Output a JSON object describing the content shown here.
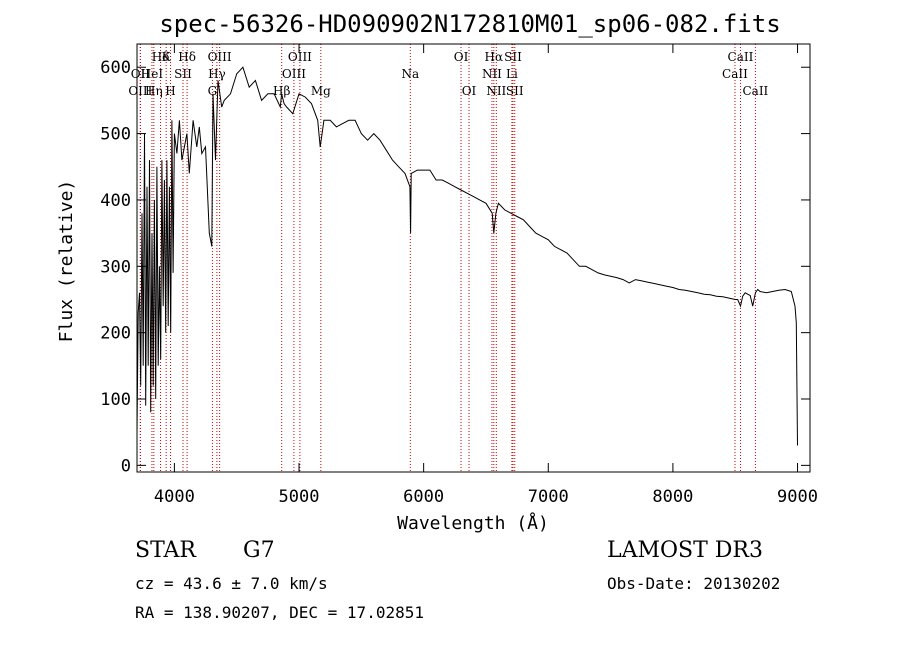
{
  "chart_data": {
    "type": "line",
    "title": "spec-56326-HD090902N172810M01_sp06-082.fits",
    "xlabel": "Wavelength (Å)",
    "ylabel": "Flux (relative)",
    "xlim": [
      3700,
      9100
    ],
    "ylim": [
      -10,
      635
    ],
    "xticks": [
      4000,
      5000,
      6000,
      7000,
      8000,
      9000
    ],
    "yticks": [
      0,
      100,
      200,
      300,
      400,
      500,
      600
    ],
    "grid": false,
    "line_color": "#000000",
    "marker_color": "#cc0000",
    "series": [
      {
        "x": [
          3700,
          3710,
          3720,
          3730,
          3740,
          3750,
          3760,
          3770,
          3780,
          3790,
          3800,
          3810,
          3820,
          3830,
          3840,
          3850,
          3860,
          3870,
          3880,
          3890,
          3900,
          3910,
          3920,
          3930,
          3940,
          3950,
          3960,
          3970,
          3980,
          3990,
          4000,
          4020,
          4040,
          4060,
          4080,
          4100,
          4120,
          4150,
          4180,
          4200,
          4220,
          4250,
          4280,
          4300,
          4310,
          4330,
          4350,
          4380,
          4400,
          4450,
          4500,
          4550,
          4600,
          4650,
          4700,
          4750,
          4800,
          4850,
          4860,
          4880,
          4900,
          4950,
          5000,
          5050,
          5100,
          5150,
          5170,
          5185,
          5200,
          5250,
          5300,
          5350,
          5400,
          5450,
          5500,
          5550,
          5600,
          5650,
          5700,
          5750,
          5800,
          5850,
          5890,
          5895,
          5900,
          5950,
          6000,
          6050,
          6100,
          6150,
          6200,
          6250,
          6300,
          6350,
          6400,
          6450,
          6500,
          6550,
          6563,
          6580,
          6600,
          6650,
          6700,
          6750,
          6800,
          6850,
          6900,
          6950,
          7000,
          7050,
          7100,
          7150,
          7200,
          7250,
          7300,
          7350,
          7400,
          7450,
          7500,
          7550,
          7600,
          7650,
          7700,
          7750,
          7800,
          7850,
          7900,
          7950,
          8000,
          8050,
          8100,
          8150,
          8200,
          8250,
          8300,
          8350,
          8400,
          8450,
          8500,
          8520,
          8542,
          8560,
          8580,
          8600,
          8620,
          8640,
          8662,
          8680,
          8700,
          8750,
          8800,
          8850,
          8900,
          8950,
          8980,
          8990,
          9000
        ],
        "y": [
          50,
          230,
          260,
          120,
          380,
          150,
          500,
          90,
          420,
          150,
          460,
          80,
          350,
          120,
          400,
          100,
          450,
          150,
          300,
          160,
          460,
          240,
          430,
          200,
          460,
          210,
          420,
          200,
          520,
          290,
          500,
          470,
          520,
          460,
          480,
          500,
          440,
          520,
          480,
          510,
          470,
          480,
          350,
          330,
          560,
          460,
          580,
          540,
          550,
          560,
          590,
          600,
          570,
          580,
          550,
          560,
          560,
          540,
          560,
          545,
          540,
          530,
          560,
          555,
          545,
          520,
          480,
          500,
          520,
          520,
          510,
          515,
          520,
          520,
          500,
          490,
          500,
          490,
          475,
          460,
          450,
          440,
          420,
          350,
          440,
          445,
          445,
          445,
          430,
          430,
          425,
          420,
          415,
          410,
          405,
          400,
          395,
          380,
          350,
          380,
          395,
          385,
          380,
          375,
          370,
          360,
          350,
          345,
          340,
          330,
          325,
          320,
          310,
          300,
          300,
          295,
          290,
          287,
          285,
          283,
          280,
          275,
          280,
          278,
          276,
          274,
          272,
          270,
          268,
          265,
          264,
          262,
          260,
          258,
          257,
          255,
          254,
          252,
          250,
          250,
          240,
          255,
          260,
          258,
          256,
          240,
          260,
          265,
          262,
          260,
          262,
          264,
          265,
          262,
          240,
          215,
          30
        ]
      }
    ],
    "lines": [
      {
        "name": "Hδ",
        "x": 3889,
        "tier": 0
      },
      {
        "name": "OII",
        "x": 3727,
        "tier": 1
      },
      {
        "name": "OIII",
        "x": 3727,
        "tier": 2
      },
      {
        "name": "HeI",
        "x": 3820,
        "tier": 1
      },
      {
        "name": "Hη",
        "x": 3835,
        "tier": 2
      },
      {
        "name": "K",
        "x": 3934,
        "tier": 0
      },
      {
        "name": "SII",
        "x": 4069,
        "tier": 1
      },
      {
        "name": "H",
        "x": 3969,
        "tier": 2
      },
      {
        "name": "Hδ",
        "x": 4102,
        "tier": 0
      },
      {
        "name": "OIII",
        "x": 4363,
        "tier": 0
      },
      {
        "name": "Hγ",
        "x": 4341,
        "tier": 1
      },
      {
        "name": "G",
        "x": 4305,
        "tier": 2
      },
      {
        "name": "OIII",
        "x": 5007,
        "tier": 0
      },
      {
        "name": "OIII",
        "x": 4959,
        "tier": 1
      },
      {
        "name": "Hβ",
        "x": 4861,
        "tier": 2
      },
      {
        "name": "Mg",
        "x": 5175,
        "tier": 2
      },
      {
        "name": "Na",
        "x": 5893,
        "tier": 1
      },
      {
        "name": "OI",
        "x": 6300,
        "tier": 0
      },
      {
        "name": "OI",
        "x": 6364,
        "tier": 2
      },
      {
        "name": "Hα",
        "x": 6563,
        "tier": 0
      },
      {
        "name": "NII",
        "x": 6548,
        "tier": 1
      },
      {
        "name": "NII",
        "x": 6583,
        "tier": 2
      },
      {
        "name": "SII",
        "x": 6717,
        "tier": 0
      },
      {
        "name": "Li",
        "x": 6708,
        "tier": 1
      },
      {
        "name": "SII",
        "x": 6731,
        "tier": 2
      },
      {
        "name": "CaII",
        "x": 8542,
        "tier": 0
      },
      {
        "name": "CaII",
        "x": 8498,
        "tier": 1
      },
      {
        "name": "CaII",
        "x": 8662,
        "tier": 2
      }
    ]
  },
  "info": {
    "object_class": "STAR",
    "subclass": "G7",
    "survey": "LAMOST DR3",
    "redshift": "cz = 43.6 ± 7.0 km/s",
    "obs_date": "Obs-Date: 20130202",
    "coords": "RA = 138.90207, DEC =  17.02851"
  }
}
